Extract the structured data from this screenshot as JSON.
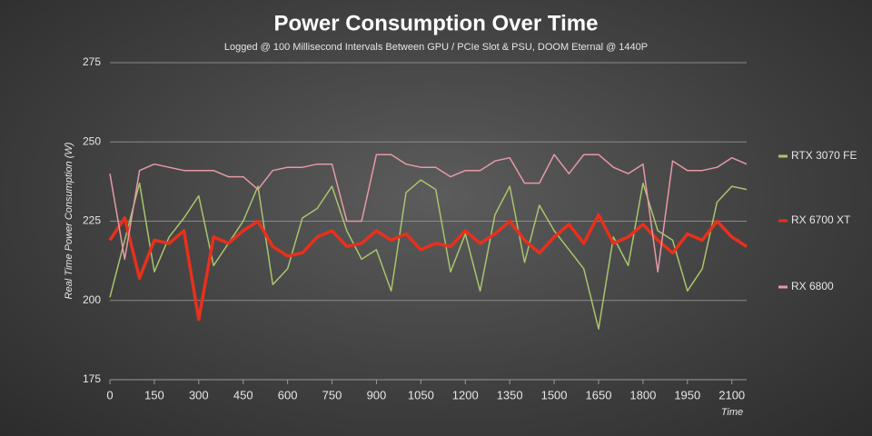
{
  "chart_data": {
    "type": "line",
    "title": "Power Consumption Over Time",
    "subtitle": "Logged @ 100 Millisecond Intervals Between GPU / PCIe Slot & PSU, DOOM Eternal @ 1440P",
    "x_label": "Time",
    "y_label": "Real Time Power Consumption (W)",
    "x": [
      0,
      50,
      100,
      150,
      200,
      250,
      300,
      350,
      400,
      450,
      500,
      550,
      600,
      650,
      700,
      750,
      800,
      850,
      900,
      950,
      1000,
      1050,
      1100,
      1150,
      1200,
      1250,
      1300,
      1350,
      1400,
      1450,
      1500,
      1550,
      1600,
      1650,
      1700,
      1750,
      1800,
      1850,
      1900,
      1950,
      2000,
      2050,
      2100,
      2150
    ],
    "series": [
      {
        "name": "RTX 3070 FE",
        "color": "#a9c46c",
        "values": [
          201,
          219,
          237,
          209,
          220,
          226,
          233,
          211,
          218,
          225,
          236,
          205,
          210,
          226,
          229,
          236,
          222,
          213,
          216,
          203,
          234,
          238,
          235,
          209,
          221,
          203,
          227,
          236,
          212,
          230,
          222,
          216,
          210,
          191,
          220,
          211,
          237,
          222,
          219,
          203,
          210,
          231,
          236,
          235
        ]
      },
      {
        "name": "RX 6700 XT",
        "color": "#e8301c",
        "values": [
          219,
          226,
          207,
          219,
          218,
          222,
          194,
          220,
          218,
          222,
          225,
          217,
          214,
          215,
          220,
          222,
          217,
          218,
          222,
          219,
          221,
          216,
          218,
          217,
          222,
          218,
          221,
          225,
          219,
          215,
          220,
          224,
          218,
          227,
          218,
          220,
          224,
          219,
          215,
          221,
          219,
          225,
          220,
          217
        ]
      },
      {
        "name": "RX 6800",
        "color": "#e69aa5",
        "values": [
          240,
          213,
          241,
          243,
          242,
          241,
          241,
          241,
          239,
          239,
          235,
          241,
          242,
          242,
          243,
          243,
          225,
          225,
          246,
          246,
          243,
          242,
          242,
          239,
          241,
          241,
          244,
          245,
          237,
          237,
          246,
          240,
          246,
          246,
          242,
          240,
          243,
          209,
          244,
          241,
          241,
          242,
          245,
          243
        ]
      }
    ],
    "xlim": [
      0,
      2150
    ],
    "xticks": [
      0,
      150,
      300,
      450,
      600,
      750,
      900,
      1050,
      1200,
      1350,
      1500,
      1650,
      1800,
      1950,
      2100
    ],
    "ylim": [
      175,
      275
    ],
    "yticks": [
      175,
      200,
      225,
      250,
      275
    ],
    "grid": true,
    "legend": "right"
  }
}
